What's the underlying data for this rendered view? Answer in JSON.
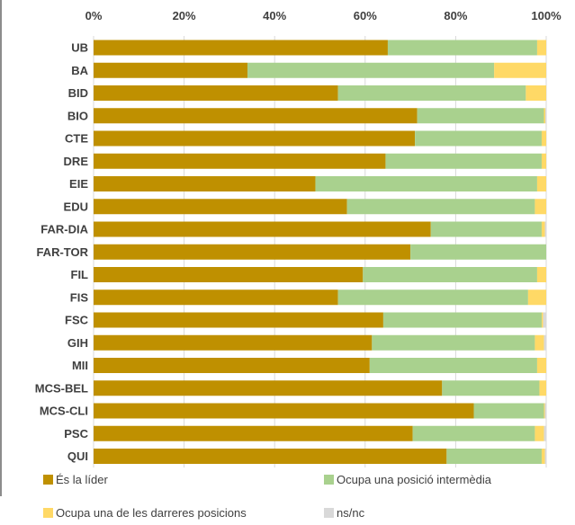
{
  "chart_data": {
    "type": "bar",
    "orientation": "horizontal",
    "stacked": true,
    "xlim": [
      0,
      100
    ],
    "x_ticks": [
      "0%",
      "20%",
      "40%",
      "60%",
      "80%",
      "100%"
    ],
    "x_tick_values": [
      0,
      20,
      40,
      60,
      80,
      100
    ],
    "x_axis_position": "top",
    "grid": true,
    "legend_position": "bottom",
    "categories": [
      "UB",
      "BA",
      "BID",
      "BIO",
      "CTE",
      "DRE",
      "EIE",
      "EDU",
      "FAR-DIA",
      "FAR-TOR",
      "FIL",
      "FIS",
      "FSC",
      "GIH",
      "MII",
      "MCS-BEL",
      "MCS-CLI",
      "PSC",
      "QUI"
    ],
    "series": [
      {
        "name": "És la líder",
        "color": "#bf9000",
        "values": [
          65,
          34,
          54,
          71.5,
          71,
          64.5,
          49,
          56,
          74.5,
          70,
          59.5,
          54,
          64,
          61.5,
          61,
          77,
          84,
          70.5,
          78
        ]
      },
      {
        "name": "Ocupa una posició intermèdia",
        "color": "#a9d18e",
        "values": [
          33,
          54.5,
          41.5,
          28,
          28,
          34.5,
          49,
          41.5,
          24.5,
          30,
          38.5,
          42,
          35,
          36,
          37,
          21.5,
          15.5,
          27,
          21
        ]
      },
      {
        "name": "Ocupa una de les darreres posicions",
        "color": "#ffd966",
        "values": [
          2,
          11.5,
          4.5,
          0.3,
          1,
          1,
          2,
          2.5,
          0.7,
          0,
          2,
          4,
          0.3,
          2,
          2,
          1.5,
          0.2,
          2,
          0.7
        ]
      },
      {
        "name": "ns/nc",
        "color": "#d9d9d9",
        "values": [
          0,
          0,
          0,
          0.2,
          0,
          0,
          0,
          0,
          0.3,
          0,
          0,
          0,
          0.7,
          0.5,
          0,
          0,
          0.3,
          0.5,
          0.3
        ]
      }
    ]
  }
}
